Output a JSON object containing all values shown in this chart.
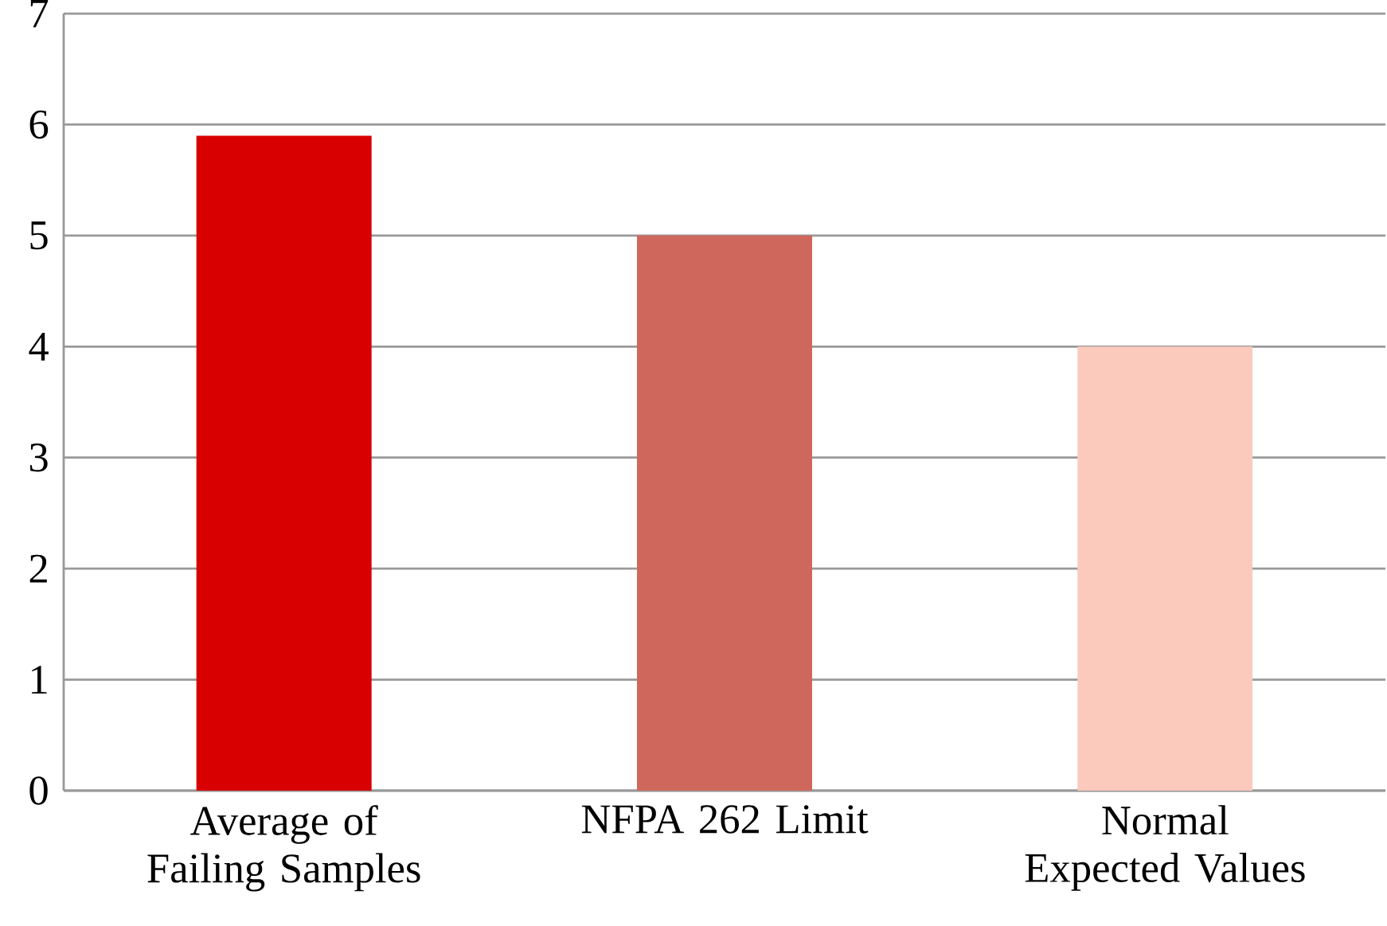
{
  "chart_data": {
    "type": "bar",
    "categories": [
      "Average of Failing Samples",
      "NFPA 262 Limit",
      "Normal Expected Values"
    ],
    "values": [
      5.9,
      5,
      4
    ],
    "colors": [
      "#d80000",
      "#d0675c",
      "#fcc9bd"
    ],
    "ylim": [
      0,
      7
    ],
    "yticks": [
      0,
      1,
      2,
      3,
      4,
      5,
      6,
      7
    ],
    "grid": "y"
  }
}
